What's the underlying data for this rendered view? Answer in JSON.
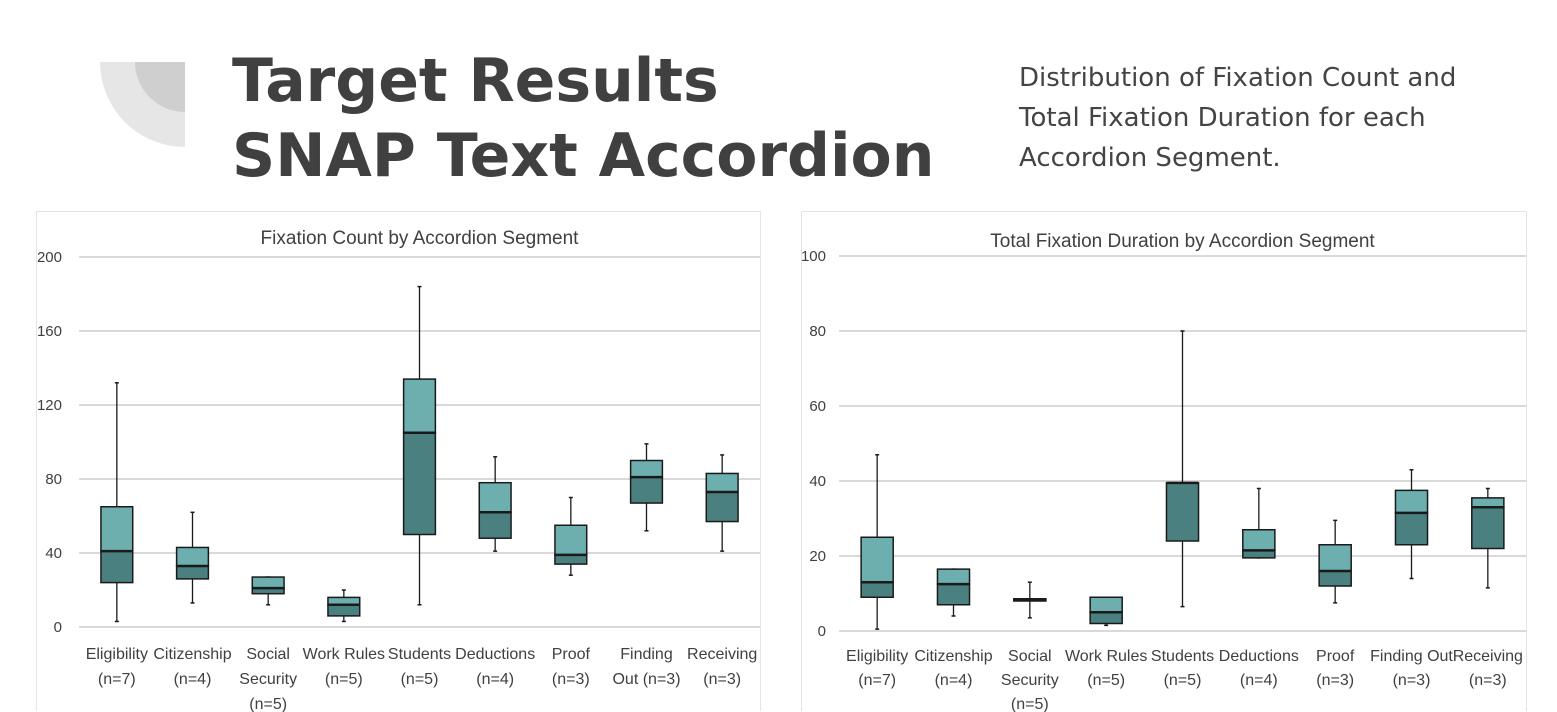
{
  "header": {
    "title_line1": "Target Results",
    "title_line2": "SNAP Text Accordion",
    "description": "Distribution of Fixation Count and Total Fixation Duration for each Accordion Segment."
  },
  "colors": {
    "box_upper": "#6daeae",
    "box_lower": "#4a8080",
    "outline": "#1a1a1a",
    "grid": "#d9d9d9",
    "text": "#404040"
  },
  "chart_data": [
    {
      "type": "boxplot",
      "title": "Fixation Count by Accordion Segment",
      "xlabel": "",
      "ylabel": "",
      "ylim": [
        0,
        200
      ],
      "yticks": [
        0,
        40,
        80,
        120,
        160,
        200
      ],
      "grid": true,
      "categories": [
        [
          "Eligibility",
          "(n=7)"
        ],
        [
          "Citizenship",
          "(n=4)"
        ],
        [
          "Social",
          "Security",
          "(n=5)"
        ],
        [
          "Work Rules",
          "(n=5)"
        ],
        [
          "Students",
          "(n=5)"
        ],
        [
          "Deductions",
          "(n=4)"
        ],
        [
          "Proof",
          "(n=3)"
        ],
        [
          "Finding",
          "Out (n=3)"
        ],
        [
          "Receiving",
          "(n=3)"
        ]
      ],
      "boxes": [
        {
          "min": 3,
          "q1": 24,
          "median": 41,
          "q3": 65,
          "max": 132
        },
        {
          "min": 13,
          "q1": 26,
          "median": 33,
          "q3": 43,
          "max": 62
        },
        {
          "min": 12,
          "q1": 18,
          "median": 21,
          "q3": 27,
          "max": 27
        },
        {
          "min": 3,
          "q1": 6,
          "median": 12,
          "q3": 16,
          "max": 20
        },
        {
          "min": 12,
          "q1": 50,
          "median": 105,
          "q3": 134,
          "max": 184
        },
        {
          "min": 41,
          "q1": 48,
          "median": 62,
          "q3": 78,
          "max": 92
        },
        {
          "min": 28,
          "q1": 34,
          "median": 39,
          "q3": 55,
          "max": 70
        },
        {
          "min": 52,
          "q1": 67,
          "median": 81,
          "q3": 90,
          "max": 99
        },
        {
          "min": 41,
          "q1": 57,
          "median": 73,
          "q3": 83,
          "max": 93
        }
      ]
    },
    {
      "type": "boxplot",
      "title": "Total Fixation Duration by Accordion Segment",
      "xlabel": "",
      "ylabel": "",
      "ylim": [
        0,
        100
      ],
      "yticks": [
        0,
        20,
        40,
        60,
        80,
        100
      ],
      "grid": true,
      "categories": [
        [
          "Eligibility",
          "(n=7)"
        ],
        [
          "Citizenship",
          "(n=4)"
        ],
        [
          "Social",
          "Security",
          "(n=5)"
        ],
        [
          "Work Rules",
          "(n=5)"
        ],
        [
          "Students",
          "(n=5)"
        ],
        [
          "Deductions",
          "(n=4)"
        ],
        [
          "Proof",
          "(n=3)"
        ],
        [
          "Finding Out",
          "(n=3)"
        ],
        [
          "Receiving",
          "(n=3)"
        ]
      ],
      "boxes": [
        {
          "min": 0.5,
          "q1": 9,
          "median": 13,
          "q3": 25,
          "max": 47
        },
        {
          "min": 4,
          "q1": 7,
          "median": 12.5,
          "q3": 16.5,
          "max": 16.5
        },
        {
          "min": 3.5,
          "q1": 8,
          "median": 8.3,
          "q3": 8.6,
          "max": 13
        },
        {
          "min": 1.5,
          "q1": 2,
          "median": 5,
          "q3": 9,
          "max": 9
        },
        {
          "min": 6.5,
          "q1": 24,
          "median": 39.5,
          "q3": 39.5,
          "max": 80
        },
        {
          "min": 19.5,
          "q1": 19.5,
          "median": 21.5,
          "q3": 27,
          "max": 38
        },
        {
          "min": 7.5,
          "q1": 12,
          "median": 16,
          "q3": 23,
          "max": 29.5
        },
        {
          "min": 14,
          "q1": 23,
          "median": 31.5,
          "q3": 37.5,
          "max": 43
        },
        {
          "min": 11.5,
          "q1": 22,
          "median": 33,
          "q3": 35.5,
          "max": 38
        }
      ]
    }
  ]
}
